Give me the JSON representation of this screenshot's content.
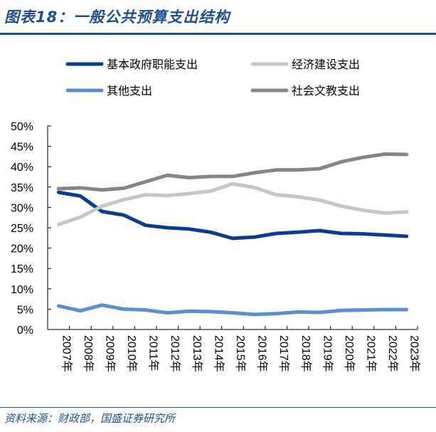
{
  "title": "图表18：一般公共预算支出结构",
  "source": "资料来源：财政部，国盛证券研究所",
  "chart_data": {
    "type": "line",
    "title": "",
    "xlabel": "",
    "ylabel": "",
    "ylim": [
      0,
      50
    ],
    "y_ticks": [
      "0%",
      "5%",
      "10%",
      "15%",
      "20%",
      "25%",
      "30%",
      "35%",
      "40%",
      "45%",
      "50%"
    ],
    "grid": false,
    "legend_position": "top",
    "categories": [
      "2007年",
      "2008年",
      "2009年",
      "2010年",
      "2011年",
      "2012年",
      "2013年",
      "2014年",
      "2015年",
      "2016年",
      "2017年",
      "2018年",
      "2019年",
      "2020年",
      "2021年",
      "2022年",
      "2023年"
    ],
    "series": [
      {
        "name": "基本政府职能支出",
        "color": "#0a3d8f",
        "values": [
          33.7,
          32.8,
          29.0,
          28.1,
          25.6,
          25.0,
          24.7,
          23.9,
          22.4,
          22.7,
          23.6,
          23.9,
          24.3,
          23.6,
          23.5,
          23.2,
          22.9
        ]
      },
      {
        "name": "经济建设支出",
        "color": "#c6c6c6",
        "values": [
          25.8,
          27.6,
          30.3,
          31.9,
          33.1,
          32.9,
          33.4,
          34.0,
          35.8,
          34.9,
          33.1,
          32.6,
          31.8,
          30.3,
          29.3,
          28.6,
          28.9
        ]
      },
      {
        "name": "其他支出",
        "color": "#5b8fd0",
        "values": [
          5.8,
          4.6,
          6.0,
          5.0,
          4.8,
          4.1,
          4.5,
          4.4,
          4.1,
          3.7,
          3.9,
          4.3,
          4.2,
          4.7,
          4.8,
          4.9,
          4.9
        ]
      },
      {
        "name": "社会文教支出",
        "color": "#858585",
        "values": [
          34.6,
          34.8,
          34.3,
          34.7,
          36.3,
          37.9,
          37.3,
          37.6,
          37.6,
          38.5,
          39.2,
          39.2,
          39.5,
          41.2,
          42.3,
          43.1,
          43.0
        ]
      }
    ]
  }
}
